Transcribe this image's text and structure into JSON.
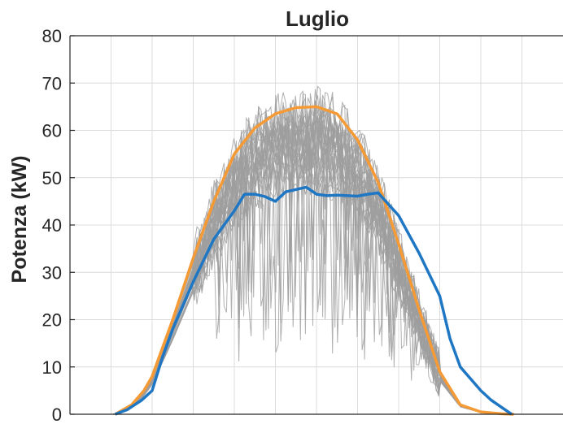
{
  "chart_data": {
    "type": "line",
    "title": "Luglio",
    "xlabel": "",
    "ylabel": "Potenza (kW)",
    "ylim": [
      0,
      80
    ],
    "yticks": [
      0,
      10,
      20,
      30,
      40,
      50,
      60,
      70,
      80
    ],
    "xlim": [
      0,
      24
    ],
    "xgrid": [
      2,
      4,
      6,
      8,
      10,
      12,
      14,
      16,
      18,
      20,
      22
    ],
    "grid": true,
    "colors": {
      "daily_profiles": "#9e9e9e",
      "envelope": "#f59a35",
      "median": "#1f77c4",
      "axes": "#262626",
      "grid": "#dcdcdc"
    },
    "series": [
      {
        "role": "envelope",
        "x": [
          2.2,
          3.0,
          3.6,
          4.0,
          5.0,
          6.0,
          7.0,
          8.0,
          9.0,
          10.0,
          11.0,
          12.0,
          13.0,
          14.0,
          15.0,
          16.0,
          17.0,
          18.0,
          19.0,
          20.0,
          20.5,
          21.0,
          21.6
        ],
        "values": [
          0,
          2,
          5,
          8,
          20,
          33,
          45,
          55,
          60.5,
          63.5,
          64.8,
          65,
          63.5,
          58,
          49,
          36,
          22,
          9,
          2,
          0.5,
          0.3,
          0.1,
          0
        ]
      },
      {
        "role": "median",
        "x": [
          2.2,
          2.8,
          3.5,
          4.0,
          4.5,
          5.0,
          6.0,
          7.0,
          8.0,
          8.5,
          9.0,
          9.5,
          10.0,
          10.5,
          11.0,
          11.5,
          12.0,
          12.5,
          13.0,
          14.0,
          14.5,
          15.0,
          16.0,
          17.0,
          18.0,
          18.5,
          19.0,
          20.0,
          20.5,
          21.0,
          21.5
        ],
        "values": [
          0,
          1,
          3,
          5,
          12,
          18,
          28,
          37,
          43,
          46.5,
          46.5,
          46,
          45,
          47,
          47.5,
          48,
          46.5,
          46.2,
          46.3,
          46.1,
          46.5,
          46.8,
          42,
          34,
          25,
          16,
          10,
          5,
          3,
          1.5,
          0
        ]
      }
    ],
    "profile_bundle": {
      "description": "many overlapping daily profiles (gray)",
      "count": 31,
      "peak_value": 74
    }
  }
}
